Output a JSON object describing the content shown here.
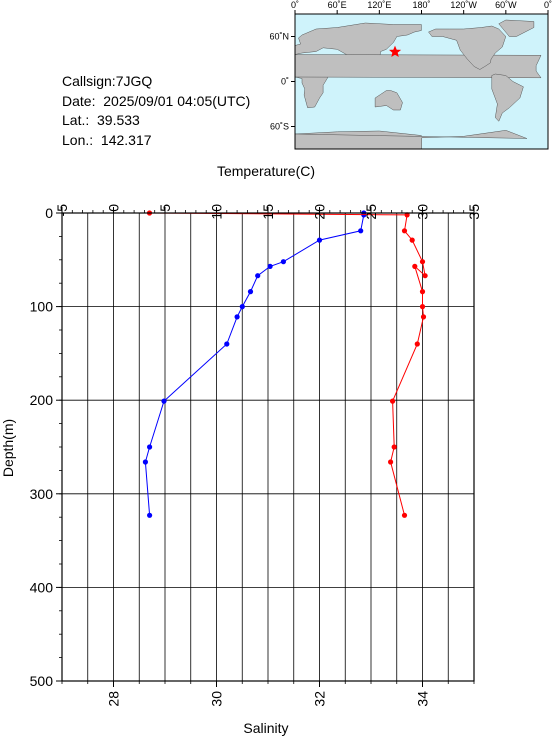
{
  "info": {
    "callsign": "Callsign:7JGQ",
    "date": "Date:  2025/09/01 04:05(UTC)",
    "lat": "Lat.:  39.533",
    "lon": "Lon.:  142.317"
  },
  "map": {
    "top_ticks": [
      "0˚",
      "60˚E",
      "120˚E",
      "180˚",
      "120˚W",
      "60˚W",
      "0˚"
    ],
    "left_ticks": [
      "60˚N",
      "0˚",
      "60˚S"
    ],
    "ocean_color": "#cff3fb",
    "land_color": "#bfbfbf",
    "marker_color": "#ff0000",
    "marker": {
      "lon": 142.317,
      "lat": 39.533
    }
  },
  "chart_data": {
    "type": "line",
    "ylabel": "Depth(m)",
    "top_axis_label": "Temperature(C)",
    "bottom_axis_label": "Salinity",
    "temperature_range": [
      -5,
      35
    ],
    "salinity_range": [
      27,
      35
    ],
    "depth_range": [
      0,
      500
    ],
    "temperature_ticks": [
      "-5",
      "0",
      "5",
      "10",
      "15",
      "20",
      "25",
      "30",
      "35"
    ],
    "salinity_ticks": [
      "28",
      "30",
      "32",
      "34"
    ],
    "depth_ticks": [
      "0",
      "100",
      "200",
      "300",
      "400",
      "500"
    ],
    "grid": true,
    "series": [
      {
        "color": "#0000ff",
        "axis": "temperature",
        "points": [
          {
            "x": 24.3,
            "y": 0
          },
          {
            "x": 24.3,
            "y": 2
          },
          {
            "x": 24.0,
            "y": 19
          },
          {
            "x": 20.0,
            "y": 29
          },
          {
            "x": 16.5,
            "y": 52
          },
          {
            "x": 15.2,
            "y": 57
          },
          {
            "x": 14.0,
            "y": 67
          },
          {
            "x": 13.3,
            "y": 84
          },
          {
            "x": 12.5,
            "y": 100
          },
          {
            "x": 12.0,
            "y": 111
          },
          {
            "x": 11.0,
            "y": 140
          },
          {
            "x": 4.9,
            "y": 201
          },
          {
            "x": 3.5,
            "y": 250
          },
          {
            "x": 3.1,
            "y": 266
          },
          {
            "x": 3.5,
            "y": 323
          }
        ]
      },
      {
        "color": "#ff0000",
        "axis": "salinity",
        "points": [
          {
            "x": 28.7,
            "y": 0
          },
          {
            "x": 33.7,
            "y": 2
          },
          {
            "x": 33.65,
            "y": 19
          },
          {
            "x": 33.8,
            "y": 29
          },
          {
            "x": 34.0,
            "y": 52
          },
          {
            "x": 34.05,
            "y": 67
          },
          {
            "x": 33.85,
            "y": 57
          },
          {
            "x": 34.0,
            "y": 84
          },
          {
            "x": 34.0,
            "y": 100
          },
          {
            "x": 34.02,
            "y": 111
          },
          {
            "x": 33.9,
            "y": 140
          },
          {
            "x": 33.42,
            "y": 201
          },
          {
            "x": 33.45,
            "y": 250
          },
          {
            "x": 33.38,
            "y": 266
          },
          {
            "x": 33.65,
            "y": 323
          }
        ]
      }
    ]
  }
}
